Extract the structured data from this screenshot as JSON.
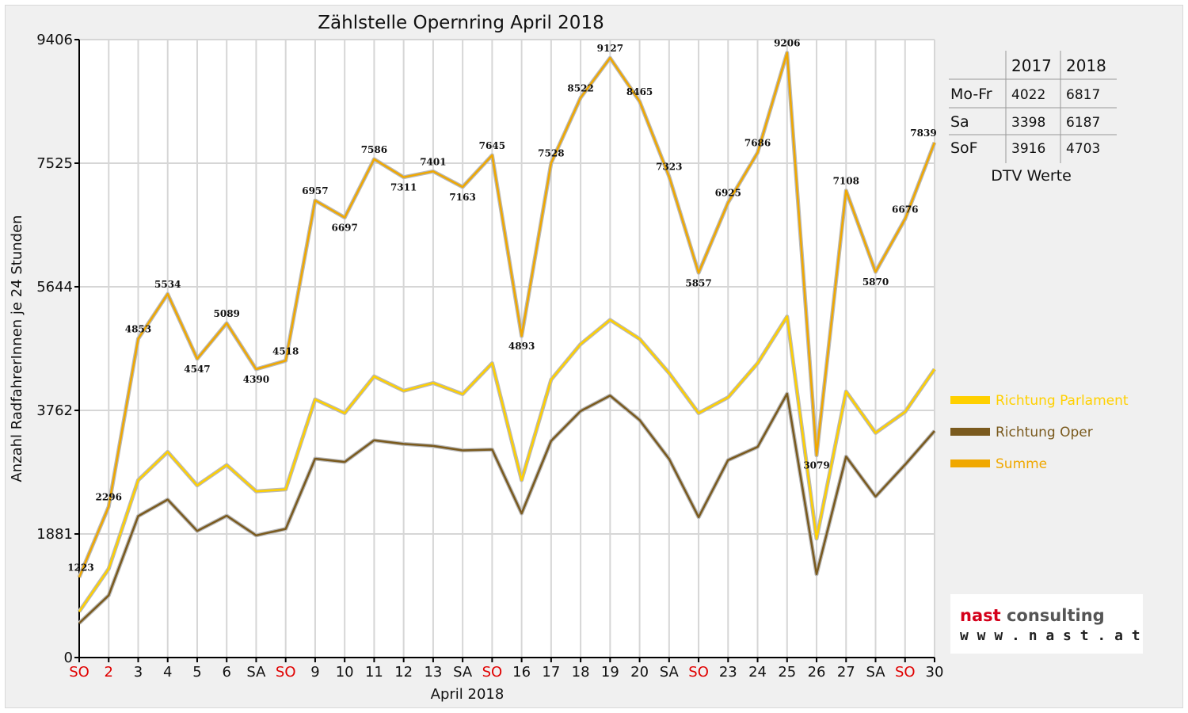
{
  "chart_data": {
    "type": "line",
    "title": "Zählstelle Opernring April 2018",
    "xlabel": "April 2018",
    "ylabel": "Anzahl RadfahrerInnen je 24 Stunden",
    "ylim": [
      0,
      9406
    ],
    "yticks": [
      "0",
      "1881",
      "3762",
      "5644",
      "7525",
      "9406"
    ],
    "categories": [
      "SO",
      "2",
      "3",
      "4",
      "5",
      "6",
      "SA",
      "SO",
      "9",
      "10",
      "11",
      "12",
      "13",
      "SA",
      "SO",
      "16",
      "17",
      "18",
      "19",
      "20",
      "SA",
      "SO",
      "23",
      "24",
      "25",
      "26",
      "27",
      "SA",
      "SO",
      "30"
    ],
    "category_colors": [
      "#e00000",
      "#e00000",
      "#111111",
      "#111111",
      "#111111",
      "#111111",
      "#111111",
      "#e00000",
      "#111111",
      "#111111",
      "#111111",
      "#111111",
      "#111111",
      "#111111",
      "#e00000",
      "#111111",
      "#111111",
      "#111111",
      "#111111",
      "#111111",
      "#111111",
      "#e00000",
      "#111111",
      "#111111",
      "#111111",
      "#111111",
      "#111111",
      "#111111",
      "#e00000",
      "#111111"
    ],
    "grid": true,
    "legend_position": "right",
    "series": [
      {
        "name": "Richtung Parlament",
        "color": "#ffd000",
        "values": [
          700,
          1350,
          2700,
          3130,
          2620,
          2930,
          2530,
          2560,
          3930,
          3720,
          4280,
          4060,
          4180,
          4010,
          4480,
          2700,
          4230,
          4770,
          5140,
          4850,
          4330,
          3720,
          3960,
          4480,
          5190,
          1810,
          4050,
          3420,
          3740,
          4390
        ]
      },
      {
        "name": "Richtung Oper",
        "color": "#7a5a1e",
        "values": [
          523,
          946,
          2153,
          2404,
          1927,
          2159,
          1860,
          1958,
          3027,
          2977,
          3306,
          3251,
          3221,
          3153,
          3165,
          2193,
          3298,
          3752,
          3987,
          3615,
          3023,
          2137,
          3005,
          3206,
          4016,
          1269,
          3058,
          2450,
          2936,
          3449
        ]
      },
      {
        "name": "Summe",
        "color": "#f0a800",
        "values": [
          1223,
          2296,
          4853,
          5534,
          4547,
          5089,
          4390,
          4518,
          6957,
          6697,
          7586,
          7311,
          7401,
          7163,
          7645,
          4893,
          7528,
          8522,
          9127,
          8465,
          7323,
          5857,
          6925,
          7686,
          9206,
          3079,
          7108,
          5870,
          6676,
          7839
        ],
        "data_labels": [
          "1223",
          "2296",
          "4853",
          "5534",
          "4547",
          "5089",
          "4390",
          "4518",
          "6957",
          "6697",
          "7586",
          "7311",
          "7401",
          "7163",
          "7645",
          "4893",
          "7528",
          "8522",
          "9127",
          "8465",
          "7323",
          "5857",
          "6925",
          "7686",
          "9206",
          "3079",
          "7108",
          "5870",
          "6676",
          "7839"
        ]
      }
    ]
  },
  "dtv_table": {
    "headers": [
      "2017",
      "2018"
    ],
    "rows": [
      {
        "label": "Mo-Fr",
        "v2017": "4022",
        "v2018": "6817"
      },
      {
        "label": "Sa",
        "v2017": "3398",
        "v2018": "6187"
      },
      {
        "label": "SoF",
        "v2017": "3916",
        "v2018": "4703"
      }
    ],
    "caption": "DTV Werte"
  },
  "logo": {
    "name_part1": "nast",
    "name_part2": "consulting",
    "url": "w w w . n a s t . a t",
    "color1": "#d4001a",
    "color2": "#555555"
  }
}
